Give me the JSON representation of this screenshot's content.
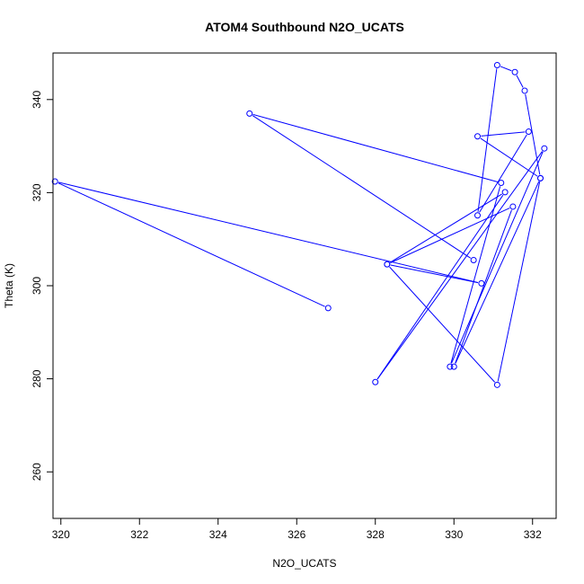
{
  "chart_data": {
    "type": "scatter",
    "title": "ATOM4 Southbound N2O_UCATS",
    "xlabel": "N2O_UCATS",
    "ylabel": "Theta (K)",
    "xlim": [
      319.8,
      332.6
    ],
    "ylim": [
      250,
      350
    ],
    "xticks": [
      320,
      322,
      324,
      326,
      328,
      330,
      332
    ],
    "yticks": [
      260,
      280,
      300,
      320,
      340
    ],
    "grid": false,
    "marker": "open-circle",
    "connected": true,
    "color": "#0000ff",
    "series": [
      {
        "x": [
          326.8,
          319.85,
          330.7,
          328.3,
          331.5,
          330.0,
          332.2,
          330.6,
          331.9,
          330.6,
          331.1,
          331.55,
          331.8,
          332.2,
          331.1,
          328.3,
          331.3,
          328.0,
          332.3,
          329.9,
          331.2,
          324.8,
          330.5
        ],
        "y": [
          295.2,
          322.4,
          300.5,
          304.6,
          317.0,
          282.6,
          323.1,
          332.1,
          333.1,
          315.1,
          347.4,
          345.9,
          341.9,
          323.1,
          278.7,
          304.6,
          320.1,
          279.3,
          329.5,
          282.6,
          322.1,
          337.0,
          305.5
        ]
      }
    ]
  }
}
